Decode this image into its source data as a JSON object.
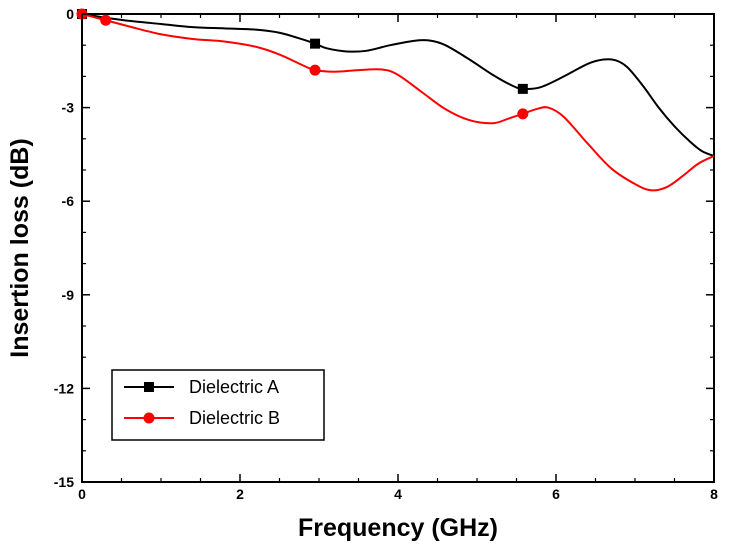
{
  "chart_data": {
    "type": "line",
    "xlabel": "Frequency (GHz)",
    "ylabel": "Insertion loss (dB)",
    "xlim": [
      0,
      8
    ],
    "ylim": [
      -15,
      0
    ],
    "xticks": [
      0,
      2,
      4,
      6,
      8
    ],
    "yticks": [
      0,
      -3,
      -6,
      -9,
      -12,
      -15
    ],
    "x_minor_step": 0.5,
    "y_minor_step": 1,
    "grid": false,
    "legend": "bottom-left",
    "series": [
      {
        "name": "Dielectric A",
        "color": "#000000",
        "marker": "square",
        "x": [
          0,
          0.3,
          0.6,
          1.0,
          1.4,
          1.8,
          2.2,
          2.5,
          2.8,
          2.95,
          3.1,
          3.35,
          3.6,
          3.9,
          4.2,
          4.4,
          4.6,
          4.9,
          5.2,
          5.45,
          5.58,
          5.8,
          6.1,
          6.4,
          6.6,
          6.75,
          6.9,
          7.1,
          7.3,
          7.5,
          7.7,
          7.85,
          8.0
        ],
        "y": [
          0,
          -0.12,
          -0.22,
          -0.32,
          -0.42,
          -0.46,
          -0.5,
          -0.6,
          -0.82,
          -0.95,
          -1.1,
          -1.2,
          -1.18,
          -1.0,
          -0.86,
          -0.85,
          -1.0,
          -1.45,
          -1.95,
          -2.3,
          -2.4,
          -2.35,
          -2.0,
          -1.6,
          -1.46,
          -1.48,
          -1.7,
          -2.3,
          -3.0,
          -3.6,
          -4.1,
          -4.4,
          -4.55
        ],
        "markers_at": [
          [
            0,
            0
          ],
          [
            2.95,
            -0.95
          ],
          [
            5.58,
            -2.4
          ]
        ]
      },
      {
        "name": "Dielectric B",
        "color": "#ff0000",
        "marker": "circle",
        "x": [
          0,
          0.3,
          0.6,
          1.0,
          1.4,
          1.8,
          2.2,
          2.5,
          2.8,
          2.95,
          3.2,
          3.5,
          3.8,
          4.0,
          4.3,
          4.6,
          4.9,
          5.2,
          5.4,
          5.58,
          5.75,
          5.9,
          6.1,
          6.4,
          6.7,
          7.0,
          7.2,
          7.4,
          7.6,
          7.8,
          8.0
        ],
        "y": [
          0,
          -0.2,
          -0.4,
          -0.65,
          -0.8,
          -0.88,
          -1.05,
          -1.3,
          -1.65,
          -1.8,
          -1.85,
          -1.8,
          -1.78,
          -1.95,
          -2.5,
          -3.05,
          -3.4,
          -3.5,
          -3.35,
          -3.2,
          -3.05,
          -3.0,
          -3.3,
          -4.15,
          -4.95,
          -5.45,
          -5.65,
          -5.55,
          -5.2,
          -4.8,
          -4.55
        ],
        "markers_at": [
          [
            0,
            0
          ],
          [
            0.3,
            -0.2
          ],
          [
            2.95,
            -1.8
          ],
          [
            5.58,
            -3.2
          ]
        ]
      }
    ]
  }
}
